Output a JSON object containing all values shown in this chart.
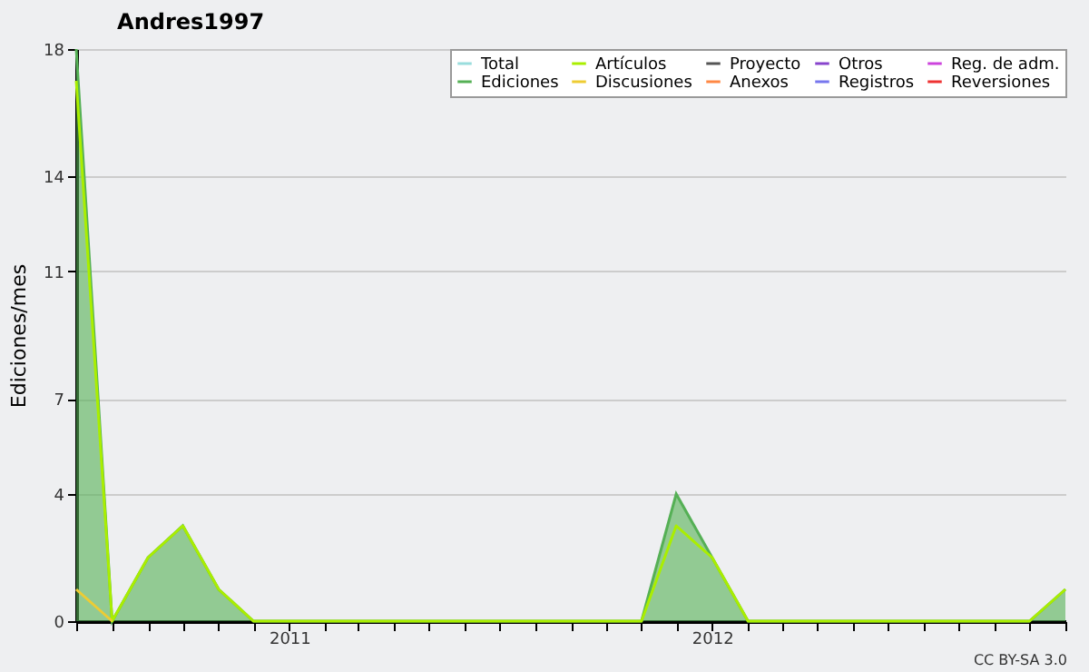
{
  "chart_data": {
    "type": "line",
    "title": "Andres1997",
    "ylabel": "Ediciones/mes",
    "x": [
      "2010-07",
      "2010-08",
      "2010-09",
      "2010-10",
      "2010-11",
      "2010-12",
      "2011-01",
      "2011-02",
      "2011-03",
      "2011-04",
      "2011-05",
      "2011-06",
      "2011-07",
      "2011-08",
      "2011-09",
      "2011-10",
      "2011-11",
      "2011-12",
      "2012-01",
      "2012-02",
      "2012-03",
      "2012-04",
      "2012-05",
      "2012-06",
      "2012-07",
      "2012-08",
      "2012-09",
      "2012-10",
      "2012-11"
    ],
    "series": [
      {
        "name": "Total",
        "color": "#99dddd",
        "values": [
          null,
          null,
          null,
          null,
          null,
          null,
          null,
          null,
          null,
          null,
          null,
          null,
          null,
          null,
          null,
          null,
          null,
          null,
          null,
          null,
          null,
          null,
          null,
          null,
          null,
          null,
          null,
          null,
          null
        ]
      },
      {
        "name": "Ediciones",
        "type": "area",
        "color": "#55b055",
        "values": [
          18,
          0,
          2,
          3,
          1,
          0,
          0,
          0,
          0,
          0,
          0,
          0,
          0,
          0,
          0,
          0,
          0,
          4,
          2,
          0,
          0,
          0,
          0,
          0,
          0,
          0,
          0,
          0,
          1
        ]
      },
      {
        "name": "Artículos",
        "color": "#aaee00",
        "values": [
          17,
          0,
          2,
          3,
          1,
          0,
          0,
          0,
          0,
          0,
          0,
          0,
          0,
          0,
          0,
          0,
          0,
          3,
          2,
          0,
          0,
          0,
          0,
          0,
          0,
          0,
          0,
          0,
          1
        ]
      },
      {
        "name": "Discusiones",
        "color": "#eecc33",
        "values": [
          1,
          0,
          null,
          null,
          null,
          null,
          null,
          null,
          null,
          null,
          null,
          null,
          null,
          null,
          null,
          null,
          null,
          null,
          null,
          null,
          null,
          null,
          null,
          null,
          null,
          null,
          null,
          null,
          null
        ]
      },
      {
        "name": "Proyecto",
        "color": "#555555",
        "values": [
          null,
          null,
          null,
          null,
          null,
          null,
          null,
          null,
          null,
          null,
          null,
          null,
          null,
          null,
          null,
          null,
          null,
          null,
          null,
          null,
          null,
          null,
          null,
          null,
          null,
          null,
          null,
          null,
          null
        ]
      },
      {
        "name": "Anexos",
        "color": "#ff8844",
        "values": [
          null,
          null,
          null,
          null,
          null,
          null,
          null,
          null,
          null,
          null,
          null,
          null,
          null,
          null,
          null,
          null,
          null,
          null,
          null,
          null,
          null,
          null,
          null,
          null,
          null,
          null,
          null,
          null,
          null
        ]
      },
      {
        "name": "Otros",
        "color": "#8844cc",
        "values": [
          null,
          null,
          null,
          null,
          null,
          null,
          null,
          null,
          null,
          null,
          null,
          null,
          null,
          null,
          null,
          null,
          null,
          null,
          null,
          null,
          null,
          null,
          null,
          null,
          null,
          null,
          null,
          null,
          null
        ]
      },
      {
        "name": "Registros",
        "color": "#7777ee",
        "values": [
          null,
          null,
          null,
          null,
          null,
          null,
          null,
          null,
          null,
          null,
          null,
          null,
          null,
          null,
          null,
          null,
          null,
          null,
          null,
          null,
          null,
          null,
          null,
          null,
          null,
          null,
          null,
          null,
          null
        ]
      },
      {
        "name": "Reg. de adm.",
        "color": "#cc44dd",
        "values": [
          null,
          null,
          null,
          null,
          null,
          null,
          null,
          null,
          null,
          null,
          null,
          null,
          null,
          null,
          null,
          null,
          null,
          null,
          null,
          null,
          null,
          null,
          null,
          null,
          null,
          null,
          null,
          null,
          null
        ]
      },
      {
        "name": "Reversiones",
        "color": "#ee3333",
        "values": [
          null,
          null,
          null,
          null,
          null,
          null,
          null,
          null,
          null,
          null,
          null,
          null,
          null,
          null,
          null,
          null,
          null,
          null,
          null,
          null,
          null,
          null,
          null,
          null,
          null,
          null,
          null,
          null,
          null
        ]
      }
    ],
    "xlim": [
      "2010-07",
      "2012-11"
    ],
    "xticks": [
      {
        "value": "2010-07",
        "label": null
      },
      {
        "value": "2010-08",
        "label": null
      },
      {
        "value": "2010-09",
        "label": null
      },
      {
        "value": "2010-10",
        "label": null
      },
      {
        "value": "2010-11",
        "label": null
      },
      {
        "value": "2010-12",
        "label": null
      },
      "2011",
      {
        "value": "2011-02",
        "label": null
      },
      {
        "value": "2011-03",
        "label": null
      },
      {
        "value": "2011-04",
        "label": null
      },
      {
        "value": "2011-05",
        "label": null
      },
      {
        "value": "2011-06",
        "label": null
      },
      {
        "value": "2011-07",
        "label": null
      },
      {
        "value": "2011-08",
        "label": null
      },
      {
        "value": "2011-09",
        "label": null
      },
      {
        "value": "2011-10",
        "label": null
      },
      {
        "value": "2011-11",
        "label": null
      },
      {
        "value": "2011-12",
        "label": null
      },
      "2012",
      {
        "value": "2012-02",
        "label": null
      },
      {
        "value": "2012-03",
        "label": null
      },
      {
        "value": "2012-04",
        "label": null
      },
      {
        "value": "2012-05",
        "label": null
      },
      {
        "value": "2012-06",
        "label": null
      },
      {
        "value": "2012-07",
        "label": null
      },
      {
        "value": "2012-08",
        "label": null
      },
      {
        "value": "2012-09",
        "label": null
      },
      {
        "value": "2012-10",
        "label": null
      },
      {
        "value": "2012-11",
        "label": null
      }
    ],
    "ylim": [
      0,
      18
    ],
    "yticks": [
      0,
      4,
      7,
      11,
      14,
      18
    ],
    "grid": "y",
    "legend": "top right",
    "marker": "none",
    "annotations": [
      "CC BY-SA 3.0"
    ]
  }
}
